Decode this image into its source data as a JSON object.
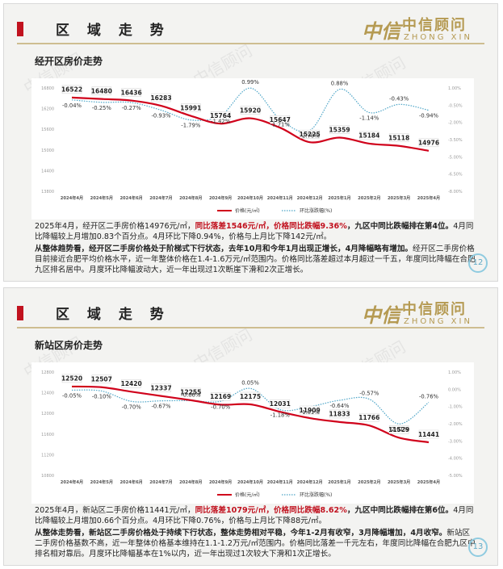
{
  "slides": [
    {
      "header_title": "区 域 走 势",
      "logo": {
        "mark": "中信",
        "cn": "中信顾问",
        "en": "ZHONG XIN"
      },
      "subtitle": "经开区房价走势",
      "watermark": "中信顾问",
      "page_no": "12",
      "chart_data": {
        "type": "line",
        "categories": [
          "2024年4月",
          "2024年5月",
          "2024年6月",
          "2024年7月",
          "2024年8月",
          "2024年9月",
          "2024年10月",
          "2024年11月",
          "2024年12月",
          "2025年1月",
          "2025年2月",
          "2025年3月",
          "2025年4月"
        ],
        "left_axis_ticks": [
          "16800",
          "16200",
          "15600",
          "15000",
          "14400",
          "13800"
        ],
        "left_ylim": [
          13800,
          16800
        ],
        "right_axis_ticks": [
          "1.00%",
          "-0.50%",
          "-2.00%",
          "-3.50%",
          "-5.00%",
          "-6.50%",
          "-8.00%"
        ],
        "right_ylim": [
          -8,
          1
        ],
        "series": [
          {
            "name": "价格(元/㎡)",
            "axis": "left",
            "style": "solid",
            "color": "#d0021b",
            "values": [
              16522,
              16480,
              16436,
              16283,
              15991,
              15764,
              15920,
              15647,
              15225,
              15359,
              15184,
              15118,
              14976
            ],
            "labels": [
              "16522",
              "16480",
              "16436",
              "16283",
              "15991",
              "15764",
              "15920",
              "15647",
              "15225",
              "15359",
              "15184",
              "15118",
              "14976"
            ]
          },
          {
            "name": "环比涨跌幅(%)",
            "axis": "right",
            "style": "dotted",
            "color": "#4fa6c8",
            "values": [
              -0.04,
              -0.25,
              -0.27,
              -0.93,
              -1.79,
              -1.42,
              0.99,
              -1.71,
              -2.7,
              0.88,
              -1.14,
              -0.43,
              -0.94
            ],
            "labels": [
              "-0.04%",
              "-0.25%",
              "-0.27%",
              "-0.93%",
              "-1.79%",
              "-1.42%",
              "0.99%",
              "-1.71%",
              "-2.70%",
              "0.88%",
              "-1.14%",
              "-0.43%",
              "-0.94%"
            ]
          }
        ]
      },
      "p1_parts": [
        "2025年4月，经开区二手房价格14976元/㎡，",
        "同比落差1546元/㎡，价格同比跌幅9.36%",
        "，九区中同比跌幅排在第4位。",
        "4月同比降幅较上月增加0.83个百分点。4月环比下降0.94%，价格与上月比下降142元/㎡。"
      ],
      "p2_parts": [
        "从整体趋势看，经开区二手房价格处于阶梯式下行状态，去年10月和今年1月出现正增长，4月降幅略有增加。",
        "经开区二手房价格目前接近合肥平均价格水平，近一年整体价格在1.4-1.6万元/㎡范围内。价格同比落差超过本月超过一千五，年度同比降幅在合肥九区排名居中。月度环比降幅波动大，近一年出现过1次断崖下滑和2次正增长。"
      ]
    },
    {
      "header_title": "区 域 走 势",
      "logo": {
        "mark": "中信",
        "cn": "中信顾问",
        "en": "ZHONG XIN"
      },
      "subtitle": "新站区房价走势",
      "watermark": "中信顾问",
      "page_no": "13",
      "chart_data": {
        "type": "line",
        "categories": [
          "2024年4月",
          "2024年5月",
          "2024年6月",
          "2024年7月",
          "2024年8月",
          "2024年9月",
          "2024年10月",
          "2024年11月",
          "2024年12月",
          "2025年1月",
          "2025年2月",
          "2025年3月",
          "2025年4月"
        ],
        "left_axis_ticks": [
          "12800",
          "12400",
          "12000",
          "11600",
          "11200",
          "10800"
        ],
        "left_ylim": [
          10800,
          12800
        ],
        "right_axis_ticks": [
          "1.00%",
          "0.00%",
          "-1.00%",
          "-2.00%",
          "-3.00%",
          "-4.00%",
          "-5.00%"
        ],
        "right_ylim": [
          -5,
          1
        ],
        "series": [
          {
            "name": "价格(元/㎡)",
            "axis": "left",
            "style": "solid",
            "color": "#d0021b",
            "values": [
              12520,
              12507,
              12420,
              12337,
              12255,
              12169,
              12175,
              12031,
              11909,
              11833,
              11766,
              11529,
              11441
            ],
            "labels": [
              "12520",
              "12507",
              "12420",
              "12337",
              "12255",
              "12169",
              "12175",
              "12031",
              "11909",
              "11833",
              "11766",
              "11529",
              "11441"
            ]
          },
          {
            "name": "环比涨跌幅(%)",
            "axis": "right",
            "style": "dotted",
            "color": "#4fa6c8",
            "values": [
              -0.05,
              -0.1,
              -0.7,
              -0.67,
              -0.66,
              -0.7,
              0.05,
              -1.18,
              -1.01,
              -0.64,
              -0.57,
              -2.01,
              -0.76
            ],
            "labels": [
              "-0.05%",
              "-0.10%",
              "-0.70%",
              "-0.67%",
              "-0.66%",
              "-0.70%",
              "0.05%",
              "-1.18%",
              "-1.01%",
              "-0.64%",
              "-0.57%",
              "-2.01%",
              "-0.76%"
            ]
          }
        ]
      },
      "p1_parts": [
        "2025年4月，新站区二手房价格11441元/㎡，",
        "同比落差1079元/㎡，价格同比跌幅8.62%",
        "，九区中同比跌幅排在第6位。",
        "4月同比降幅较上月增加0.66个百分点。4月环比下降0.76%，价格与上月比下降88元/㎡。"
      ],
      "p2_parts": [
        "从整体走势看，新站区二手房价格处于持续下行状态，整体走势相对平稳，今年1-2月有收窄，3月降幅增加，4月收窄。",
        "新站区二手房价格基数不高，近一年整体价格基本维持在1.1-1.2万元/㎡范围内。价格同比落差一千元左右，年度同比降幅在合肥九区中排名相对靠后。月度环比降幅基本在1%以内，近一年出现过1次较大下滑和1次正增长。"
      ]
    }
  ]
}
